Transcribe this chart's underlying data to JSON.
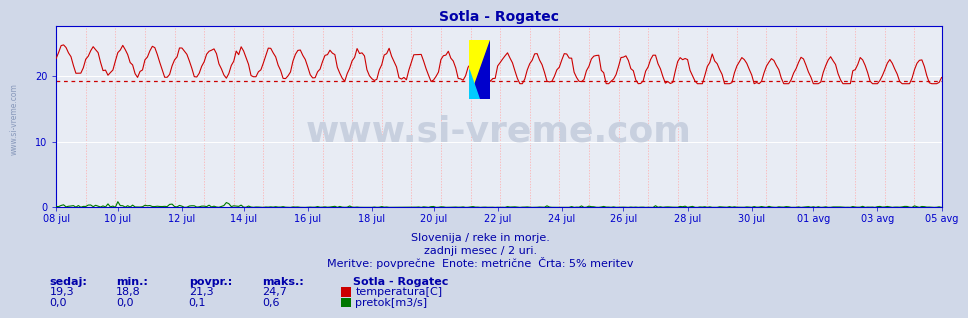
{
  "title": "Sotla - Rogatec",
  "title_color": "#0000aa",
  "title_fontsize": 10,
  "bg_color": "#d0d8e8",
  "plot_bg_color": "#e8ecf4",
  "grid_color_major": "#ffffff",
  "grid_color_minor": "#ffaaaa",
  "axis_color": "#0000cc",
  "tick_color": "#0000cc",
  "tick_fontsize": 7,
  "ylim": [
    0,
    27.5
  ],
  "yticks": [
    0,
    10,
    20
  ],
  "flow_ylim": [
    0,
    27.5
  ],
  "avg_line_value": 19.2,
  "avg_line_color": "#cc0000",
  "temp_color": "#cc0000",
  "flow_color": "#007700",
  "flow_scale": 46.0,
  "watermark_text": "www.si-vreme.com",
  "watermark_color": "#c8d0df",
  "watermark_fontsize": 26,
  "subtitle1": "Slovenija / reke in morje.",
  "subtitle2": "zadnji mesec / 2 uri.",
  "subtitle3": "Meritve: povprečne  Enote: metrične  Črta: 5% meritev",
  "subtitle_color": "#0000aa",
  "subtitle_fontsize": 8,
  "legend_title": "Sotla - Rogatec",
  "stats_headers": [
    "sedaj:",
    "min.:",
    "povpr.:",
    "maks.:"
  ],
  "stats_temp": [
    "19,3",
    "18,8",
    "21,3",
    "24,7"
  ],
  "stats_flow": [
    "0,0",
    "0,0",
    "0,1",
    "0,6"
  ],
  "stats_color": "#0000aa",
  "stats_fontsize": 8,
  "x_tick_labels": [
    "08 jul",
    "10 jul",
    "12 jul",
    "14 jul",
    "16 jul",
    "18 jul",
    "20 jul",
    "22 jul",
    "24 jul",
    "26 jul",
    "28 jul",
    "30 jul",
    "01 avg",
    "03 avg",
    "05 avg"
  ],
  "n_points": 360,
  "temp_min": 18.8,
  "temp_max": 24.7,
  "temp_avg": 21.3,
  "flow_max": 0.6
}
